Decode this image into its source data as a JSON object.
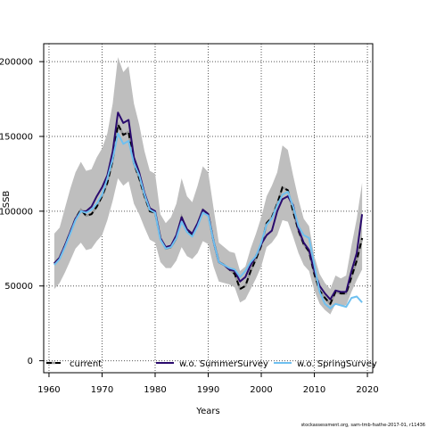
{
  "chart_data": {
    "type": "line",
    "title": "",
    "xlabel": "Years",
    "ylabel": "SSB",
    "xlim": [
      1959,
      2021
    ],
    "ylim": [
      -8000,
      212000
    ],
    "x_ticks": [
      1960,
      1970,
      1980,
      1990,
      2000,
      2010,
      2020
    ],
    "x_tick_labels": [
      "1960",
      "1970",
      "1980",
      "1990",
      "2000",
      "2010",
      "2020"
    ],
    "y_ticks": [
      0,
      50000,
      100000,
      150000,
      200000
    ],
    "y_tick_labels": [
      "0",
      "50000",
      "100000",
      "150000",
      "200000"
    ],
    "grid": true,
    "legend_position": "bottom",
    "x": [
      1961,
      1962,
      1963,
      1964,
      1965,
      1966,
      1967,
      1968,
      1969,
      1970,
      1971,
      1972,
      1973,
      1974,
      1975,
      1976,
      1977,
      1978,
      1979,
      1980,
      1981,
      1982,
      1983,
      1984,
      1985,
      1986,
      1987,
      1988,
      1989,
      1990,
      1991,
      1992,
      1993,
      1994,
      1995,
      1996,
      1997,
      1998,
      1999,
      2000,
      2001,
      2002,
      2003,
      2004,
      2005,
      2006,
      2007,
      2008,
      2009,
      2010,
      2011,
      2012,
      2013,
      2014,
      2015,
      2016,
      2017,
      2018,
      2019
    ],
    "series": [
      {
        "name": "current",
        "color": "#000000",
        "style": "dashed",
        "values": [
          65000,
          69000,
          77000,
          86000,
          95000,
          101000,
          97000,
          98000,
          103000,
          110000,
          119000,
          134000,
          158000,
          151000,
          153000,
          132000,
          122000,
          110000,
          100000,
          99000,
          82000,
          75000,
          76000,
          82000,
          96000,
          87000,
          84000,
          91000,
          101000,
          98000,
          80000,
          66000,
          64000,
          61000,
          58000,
          48000,
          50000,
          60000,
          68000,
          77000,
          92000,
          96000,
          105000,
          116000,
          114000,
          100000,
          87000,
          78000,
          73000,
          58000,
          47000,
          42000,
          38000,
          46000,
          45000,
          45000,
          56000,
          67000,
          82000
        ]
      },
      {
        "name": "w.o. SummerSurvey",
        "color": "#2a0a6e",
        "style": "solid",
        "values": [
          65000,
          69000,
          77000,
          86000,
          95000,
          100000,
          100000,
          103000,
          110000,
          116000,
          124000,
          140000,
          166000,
          159000,
          161000,
          136000,
          126000,
          112000,
          102000,
          100000,
          82000,
          76000,
          77000,
          84000,
          96000,
          88000,
          85000,
          92000,
          101000,
          98000,
          80000,
          66000,
          64000,
          61000,
          60000,
          53000,
          56000,
          64000,
          70000,
          78000,
          84000,
          87000,
          100000,
          108000,
          110000,
          104000,
          88000,
          79000,
          74000,
          60000,
          50000,
          45000,
          41000,
          47000,
          46000,
          46000,
          60000,
          72000,
          98000
        ]
      },
      {
        "name": "w.o. SpringSurvey",
        "color": "#6ec0f0",
        "style": "solid",
        "values": [
          64000,
          68000,
          76000,
          85000,
          94000,
          100000,
          99000,
          101000,
          105000,
          111000,
          122000,
          135000,
          152000,
          145000,
          147000,
          132000,
          124000,
          111000,
          101000,
          99000,
          81000,
          75000,
          76000,
          82000,
          93000,
          86000,
          83000,
          90000,
          99000,
          97000,
          80000,
          66000,
          64000,
          62000,
          61000,
          56000,
          60000,
          66000,
          70000,
          79000,
          91000,
          95000,
          104000,
          111000,
          113000,
          103000,
          90000,
          84000,
          82000,
          64000,
          46000,
          38000,
          35000,
          38000,
          37000,
          36000,
          42000,
          43000,
          39000
        ]
      }
    ],
    "confidence_band": {
      "color": "#bebebe",
      "upper": [
        85000,
        89000,
        102000,
        115000,
        126000,
        133000,
        127000,
        128000,
        136000,
        142000,
        152000,
        172000,
        203000,
        193000,
        197000,
        172000,
        158000,
        140000,
        127000,
        125000,
        98000,
        92000,
        96000,
        105000,
        122000,
        110000,
        106000,
        117000,
        130000,
        126000,
        102000,
        79000,
        76000,
        73000,
        72000,
        60000,
        63000,
        75000,
        85000,
        96000,
        110000,
        117000,
        126000,
        144000,
        141000,
        124000,
        108000,
        95000,
        90000,
        70000,
        58000,
        52000,
        48000,
        57000,
        55000,
        57000,
        77000,
        95000,
        119000
      ],
      "lower": [
        48000,
        52000,
        59000,
        67000,
        75000,
        79000,
        74000,
        75000,
        80000,
        84000,
        94000,
        107000,
        122000,
        117000,
        120000,
        105000,
        98000,
        89000,
        81000,
        79000,
        66000,
        62000,
        62000,
        67000,
        76000,
        70000,
        68000,
        72000,
        80000,
        78000,
        63000,
        53000,
        52000,
        51000,
        49000,
        39000,
        41000,
        48000,
        55000,
        63000,
        76000,
        79000,
        84000,
        94000,
        93000,
        83000,
        72000,
        64000,
        60000,
        47000,
        38000,
        34000,
        31000,
        38000,
        37000,
        37000,
        46000,
        54000,
        61000
      ]
    }
  },
  "footer": {
    "credit": "stockassessment.org, sam-tmb-fsathe-2017-01, r11436"
  }
}
